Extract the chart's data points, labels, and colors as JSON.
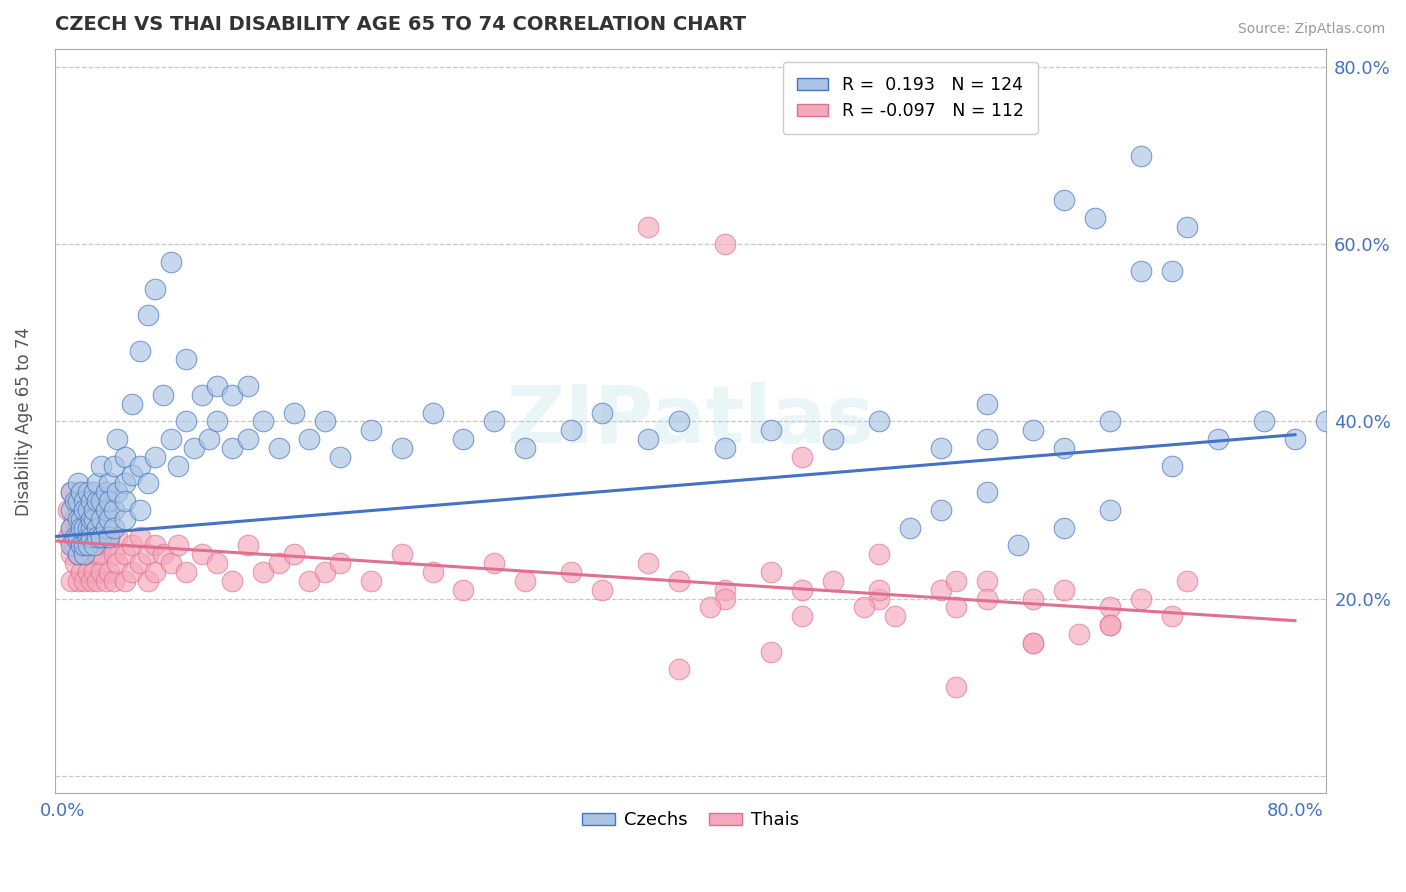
{
  "title": "CZECH VS THAI DISABILITY AGE 65 TO 74 CORRELATION CHART",
  "source": "Source: ZipAtlas.com",
  "ylabel": "Disability Age 65 to 74",
  "ylim": [
    -0.02,
    0.82
  ],
  "xlim": [
    -0.005,
    0.82
  ],
  "ytick_positions": [
    0.0,
    0.2,
    0.4,
    0.6,
    0.8
  ],
  "ytick_labels": [
    "",
    "20.0%",
    "40.0%",
    "60.0%",
    "80.0%"
  ],
  "xtick_positions": [
    0.0,
    0.8
  ],
  "xtick_labels": [
    "0.0%",
    "80.0%"
  ],
  "czech_R": 0.193,
  "czech_N": 124,
  "thai_R": -0.097,
  "thai_N": 112,
  "czech_color": "#aac4e2",
  "thai_color": "#f4a8bb",
  "czech_line_color": "#4472c4",
  "thai_line_color": "#e07090",
  "background_color": "#ffffff",
  "grid_color": "#c8c8c8",
  "watermark": "ZIPatlas",
  "czech_line_y0": 0.27,
  "czech_line_y1": 0.385,
  "thai_line_y0": 0.265,
  "thai_line_y1": 0.175,
  "czech_scatter_x": [
    0.005,
    0.005,
    0.005,
    0.005,
    0.008,
    0.008,
    0.01,
    0.01,
    0.01,
    0.01,
    0.01,
    0.012,
    0.012,
    0.012,
    0.012,
    0.014,
    0.014,
    0.014,
    0.014,
    0.014,
    0.016,
    0.016,
    0.016,
    0.016,
    0.016,
    0.018,
    0.018,
    0.018,
    0.018,
    0.02,
    0.02,
    0.02,
    0.02,
    0.022,
    0.022,
    0.022,
    0.022,
    0.025,
    0.025,
    0.025,
    0.025,
    0.028,
    0.028,
    0.028,
    0.03,
    0.03,
    0.03,
    0.03,
    0.033,
    0.033,
    0.033,
    0.035,
    0.035,
    0.04,
    0.04,
    0.04,
    0.04,
    0.045,
    0.045,
    0.05,
    0.05,
    0.05,
    0.055,
    0.055,
    0.06,
    0.06,
    0.065,
    0.07,
    0.07,
    0.075,
    0.08,
    0.08,
    0.085,
    0.09,
    0.095,
    0.1,
    0.1,
    0.11,
    0.11,
    0.12,
    0.12,
    0.13,
    0.14,
    0.15,
    0.16,
    0.17,
    0.18,
    0.2,
    0.22,
    0.24,
    0.26,
    0.28,
    0.3,
    0.33,
    0.35,
    0.38,
    0.4,
    0.43,
    0.46,
    0.5,
    0.53,
    0.57,
    0.6,
    0.63,
    0.65,
    0.68,
    0.7,
    0.72,
    0.73,
    0.6,
    0.65,
    0.67,
    0.7,
    0.72,
    0.75,
    0.78,
    0.8,
    0.82,
    0.68,
    0.65,
    0.62,
    0.6,
    0.57,
    0.55
  ],
  "czech_scatter_y": [
    0.28,
    0.3,
    0.26,
    0.32,
    0.27,
    0.31,
    0.25,
    0.29,
    0.27,
    0.31,
    0.33,
    0.26,
    0.29,
    0.28,
    0.32,
    0.25,
    0.28,
    0.31,
    0.3,
    0.26,
    0.27,
    0.3,
    0.28,
    0.32,
    0.26,
    0.28,
    0.31,
    0.29,
    0.27,
    0.26,
    0.29,
    0.32,
    0.3,
    0.28,
    0.31,
    0.27,
    0.33,
    0.29,
    0.27,
    0.31,
    0.35,
    0.28,
    0.32,
    0.3,
    0.29,
    0.33,
    0.31,
    0.27,
    0.3,
    0.35,
    0.28,
    0.32,
    0.38,
    0.29,
    0.33,
    0.36,
    0.31,
    0.34,
    0.42,
    0.3,
    0.35,
    0.48,
    0.33,
    0.52,
    0.36,
    0.55,
    0.43,
    0.38,
    0.58,
    0.35,
    0.4,
    0.47,
    0.37,
    0.43,
    0.38,
    0.4,
    0.44,
    0.37,
    0.43,
    0.38,
    0.44,
    0.4,
    0.37,
    0.41,
    0.38,
    0.4,
    0.36,
    0.39,
    0.37,
    0.41,
    0.38,
    0.4,
    0.37,
    0.39,
    0.41,
    0.38,
    0.4,
    0.37,
    0.39,
    0.38,
    0.4,
    0.37,
    0.42,
    0.39,
    0.65,
    0.4,
    0.7,
    0.57,
    0.62,
    0.38,
    0.37,
    0.63,
    0.57,
    0.35,
    0.38,
    0.4,
    0.38,
    0.4,
    0.3,
    0.28,
    0.26,
    0.32,
    0.3,
    0.28
  ],
  "thai_scatter_x": [
    0.003,
    0.003,
    0.005,
    0.005,
    0.005,
    0.005,
    0.007,
    0.007,
    0.008,
    0.008,
    0.01,
    0.01,
    0.01,
    0.01,
    0.012,
    0.012,
    0.012,
    0.014,
    0.014,
    0.014,
    0.016,
    0.016,
    0.016,
    0.018,
    0.018,
    0.018,
    0.02,
    0.02,
    0.02,
    0.022,
    0.022,
    0.022,
    0.025,
    0.025,
    0.025,
    0.028,
    0.028,
    0.03,
    0.03,
    0.03,
    0.033,
    0.033,
    0.035,
    0.035,
    0.04,
    0.04,
    0.045,
    0.045,
    0.05,
    0.05,
    0.055,
    0.055,
    0.06,
    0.06,
    0.065,
    0.07,
    0.075,
    0.08,
    0.09,
    0.1,
    0.11,
    0.12,
    0.13,
    0.14,
    0.15,
    0.16,
    0.17,
    0.18,
    0.2,
    0.22,
    0.24,
    0.26,
    0.28,
    0.3,
    0.33,
    0.35,
    0.38,
    0.4,
    0.43,
    0.46,
    0.5,
    0.53,
    0.57,
    0.6,
    0.63,
    0.65,
    0.68,
    0.7,
    0.38,
    0.43,
    0.48,
    0.53,
    0.58,
    0.63,
    0.68,
    0.73,
    0.43,
    0.48,
    0.53,
    0.58,
    0.63,
    0.68,
    0.42,
    0.48,
    0.54,
    0.6,
    0.66,
    0.72,
    0.4,
    0.46,
    0.52,
    0.58
  ],
  "thai_scatter_y": [
    0.27,
    0.3,
    0.25,
    0.28,
    0.22,
    0.32,
    0.26,
    0.29,
    0.24,
    0.27,
    0.25,
    0.28,
    0.22,
    0.3,
    0.26,
    0.23,
    0.28,
    0.25,
    0.27,
    0.22,
    0.26,
    0.23,
    0.27,
    0.25,
    0.22,
    0.28,
    0.26,
    0.23,
    0.27,
    0.25,
    0.22,
    0.28,
    0.26,
    0.23,
    0.25,
    0.27,
    0.22,
    0.26,
    0.23,
    0.27,
    0.25,
    0.22,
    0.24,
    0.27,
    0.25,
    0.22,
    0.26,
    0.23,
    0.24,
    0.27,
    0.25,
    0.22,
    0.26,
    0.23,
    0.25,
    0.24,
    0.26,
    0.23,
    0.25,
    0.24,
    0.22,
    0.26,
    0.23,
    0.24,
    0.25,
    0.22,
    0.23,
    0.24,
    0.22,
    0.25,
    0.23,
    0.21,
    0.24,
    0.22,
    0.23,
    0.21,
    0.24,
    0.22,
    0.21,
    0.23,
    0.22,
    0.2,
    0.21,
    0.22,
    0.2,
    0.21,
    0.19,
    0.2,
    0.62,
    0.6,
    0.36,
    0.25,
    0.22,
    0.15,
    0.17,
    0.22,
    0.2,
    0.18,
    0.21,
    0.19,
    0.15,
    0.17,
    0.19,
    0.21,
    0.18,
    0.2,
    0.16,
    0.18,
    0.12,
    0.14,
    0.19,
    0.1
  ]
}
